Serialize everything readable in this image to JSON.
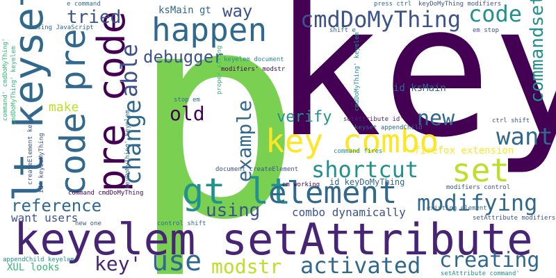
{
  "palette": {
    "dark_purple": "#440154",
    "purple": "#482475",
    "indigo": "#3b528b",
    "blue": "#31688e",
    "teal": "#21918c",
    "green": "#35b779",
    "light_green": "#7ad151",
    "yellow_green": "#bddf26",
    "yellow": "#fde725"
  },
  "words": [
    {
      "text": "p",
      "color": "#7ad151"
    },
    {
      "text": "key",
      "color": "#440154"
    },
    {
      "text": "keyelem setAttribute",
      "color": "#482475"
    },
    {
      "text": "lt keyset",
      "color": "#31688e"
    },
    {
      "text": "pre code",
      "color": "#440154"
    },
    {
      "text": "code pre",
      "color": "#31688e"
    },
    {
      "text": "key combo",
      "color": "#fde725"
    },
    {
      "text": "happen",
      "color": "#31688e"
    },
    {
      "text": "cmdDoMyThing",
      "color": "#3b528b"
    },
    {
      "text": "code",
      "color": "#21918c"
    },
    {
      "text": "gt lt",
      "color": "#21918c"
    },
    {
      "text": "element",
      "color": "#31688e"
    },
    {
      "text": "set",
      "color": "#bddf26"
    },
    {
      "text": "shortcut",
      "color": "#21918c"
    },
    {
      "text": "modifying",
      "color": "#31688e"
    },
    {
      "text": "activated",
      "color": "#31688e"
    },
    {
      "text": "use",
      "color": "#31688e"
    },
    {
      "text": "creating",
      "color": "#31688e"
    },
    {
      "text": "modstr",
      "color": "#bddf26"
    },
    {
      "text": "key'",
      "color": "#482475"
    },
    {
      "text": "reference",
      "color": "#31688e"
    },
    {
      "text": "using",
      "color": "#3b528b"
    },
    {
      "text": "want",
      "color": "#31688e"
    },
    {
      "text": "new",
      "color": "#31688e"
    },
    {
      "text": "old",
      "color": "#440154"
    },
    {
      "text": "change",
      "color": "#31688e"
    },
    {
      "text": "able",
      "color": "#3b528b"
    },
    {
      "text": "example",
      "color": "#31688e"
    },
    {
      "text": "commandset",
      "color": "#21918c"
    },
    {
      "text": "debugger",
      "color": "#3b528b"
    },
    {
      "text": "tried",
      "color": "#3b528b"
    },
    {
      "text": "way",
      "color": "#3b528b"
    },
    {
      "text": "verify",
      "color": "#21918c"
    },
    {
      "text": "make",
      "color": "#bddf26"
    },
    {
      "text": "want users",
      "color": "#3b528b"
    },
    {
      "text": "combo dynamically",
      "color": "#3b528b"
    },
    {
      "text": "firefox extension",
      "color": "#fde725"
    },
    {
      "text": "id ksMain",
      "color": "#31688e"
    },
    {
      "text": "id keyDoMyThing",
      "color": "#31688e"
    },
    {
      "text": "ksMain gt",
      "color": "#31688e"
    },
    {
      "text": "XUL looks",
      "color": "#35b779"
    },
    {
      "text": "e command",
      "color": "#31688e"
    },
    {
      "text": "using JavaScript",
      "color": "#31688e"
    },
    {
      "text": "keyelem document",
      "color": "#21918c"
    },
    {
      "text": "proper string",
      "color": "#35b779"
    },
    {
      "text": "modifiers' modstr",
      "color": "#440154"
    },
    {
      "text": "press ctrl",
      "color": "#31688e"
    },
    {
      "text": "keyDoMyThing modifiers",
      "color": "#3b528b"
    },
    {
      "text": "em stop",
      "color": "#3b528b"
    },
    {
      "text": "shift e",
      "color": "#31688e"
    },
    {
      "text": "stop em",
      "color": "#31688e"
    },
    {
      "text": "setAttribute id'",
      "color": "#482475"
    },
    {
      "text": "keyset appendChild",
      "color": "#31688e"
    },
    {
      "text": "ctrl shift",
      "color": "#3b528b"
    },
    {
      "text": "command fires",
      "color": "#21918c"
    },
    {
      "text": "document createElement",
      "color": "#3b528b"
    },
    {
      "text": "em working",
      "color": "#440154"
    },
    {
      "text": "modifiers control",
      "color": "#3b528b"
    },
    {
      "text": "existing element",
      "color": "#31688e"
    },
    {
      "text": "setAttribute modifiers'",
      "color": "#3b528b"
    },
    {
      "text": "command cmdDoMyThing",
      "color": "#440154"
    },
    {
      "text": "new one",
      "color": "#3b528b"
    },
    {
      "text": "control shift",
      "color": "#31688e"
    },
    {
      "text": "appendChild keyelem",
      "color": "#21918c"
    },
    {
      "text": "setAttribute command'",
      "color": "#21918c"
    },
    {
      "text": "cmdDoMyThing' keyelem",
      "color": "#35b779"
    },
    {
      "text": "cmdDoMyThing' keyelem",
      "color": "#21918c"
    },
    {
      "text": "keyDoMyThing' keyelem",
      "color": "#31688e"
    },
    {
      "text": "createElement key'",
      "color": "#3b528b"
    },
    {
      "text": "id' keyDoMyThing",
      "color": "#3b528b"
    },
    {
      "text": "command' cmdDoMyThing'",
      "color": "#35b779"
    }
  ]
}
